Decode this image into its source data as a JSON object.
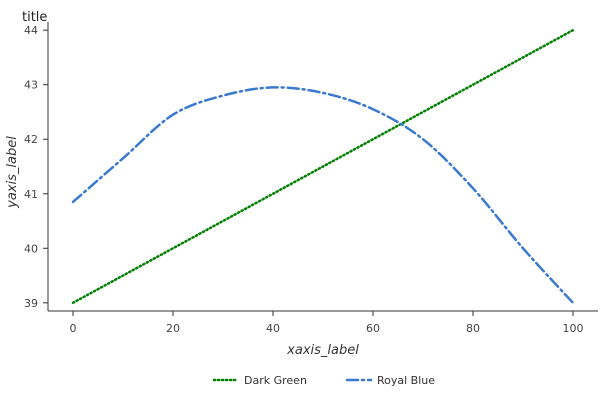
{
  "chart_data": {
    "type": "line",
    "title": "title",
    "xlabel": "xaxis_label",
    "ylabel": "yaxis_label",
    "xlim": [
      -5,
      105
    ],
    "ylim": [
      38.85,
      44.15
    ],
    "xticks": [
      0,
      20,
      40,
      60,
      80,
      100
    ],
    "yticks": [
      39,
      40,
      41,
      42,
      43,
      44
    ],
    "grid": false,
    "legend": "bottom",
    "series": [
      {
        "name": "Dark Green",
        "color": "#008000",
        "style": "dotted",
        "x": [
          0,
          100
        ],
        "y": [
          39.0,
          44.0
        ]
      },
      {
        "name": "Royal Blue",
        "color": "#3a79d0",
        "style": "dashdot",
        "x": [
          0,
          10,
          20,
          30,
          40,
          50,
          60,
          70,
          80,
          90,
          100
        ],
        "y": [
          40.85,
          41.65,
          42.45,
          42.8,
          42.95,
          42.85,
          42.55,
          42.0,
          41.1,
          40.0,
          39.0
        ]
      }
    ]
  }
}
